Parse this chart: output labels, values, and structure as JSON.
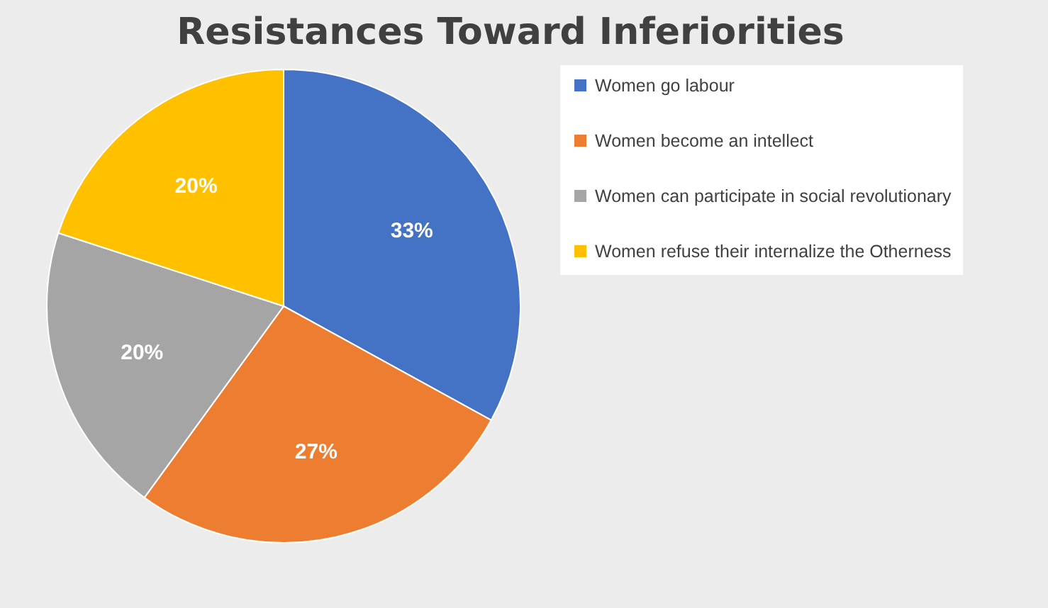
{
  "chart_data": {
    "type": "pie",
    "title": "Resistances Toward Inferiorities",
    "categories": [
      "Women go labour",
      "Women become an intellect",
      "Women can participate in social revolutionary",
      "Women refuse their internalize the Otherness"
    ],
    "values": [
      33,
      27,
      20,
      20
    ],
    "colors": [
      "#4472c4",
      "#ed7d31",
      "#a5a5a5",
      "#ffc000"
    ],
    "value_labels": [
      "33%",
      "27%",
      "20%",
      "20%"
    ],
    "legend": "right"
  }
}
